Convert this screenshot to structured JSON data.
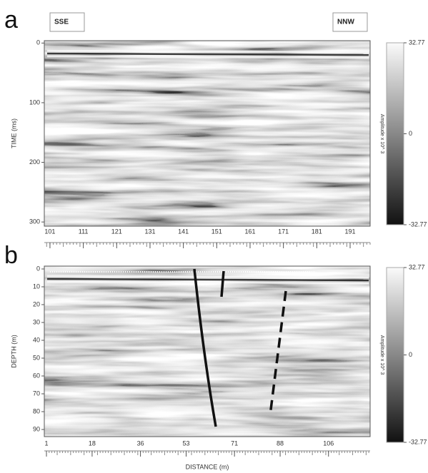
{
  "panels": [
    {
      "label": "a",
      "left_tag": "SSE",
      "right_tag": "NNW",
      "y_label": "TIME (ms)",
      "ylim": [
        -4,
        307
      ],
      "yticks": [
        0,
        100,
        200,
        300
      ],
      "xlim": [
        99.3,
        197
      ],
      "xticks": [
        101,
        111,
        121,
        131,
        141,
        151,
        161,
        171,
        181,
        191
      ],
      "colorbar": {
        "label": "Amplitude x 10^ 3",
        "lim": [
          -32.77,
          32.77
        ],
        "ticks": [
          32.77,
          0,
          -32.77
        ]
      }
    },
    {
      "label": "b",
      "y_label": "DEPTH (m)",
      "x_label": "DISTANCE (m)",
      "ylim": [
        -1.6,
        94
      ],
      "yticks": [
        0,
        10,
        20,
        30,
        40,
        50,
        60,
        70,
        80,
        90
      ],
      "xlim": [
        0.2,
        121.5
      ],
      "xticks": [
        1,
        18,
        36,
        53,
        71,
        88,
        106
      ],
      "colorbar": {
        "label": "Amplitude x 10^ 3",
        "lim": [
          -32.77,
          32.77
        ],
        "ticks": [
          32.77,
          0,
          -32.77
        ]
      }
    }
  ]
}
